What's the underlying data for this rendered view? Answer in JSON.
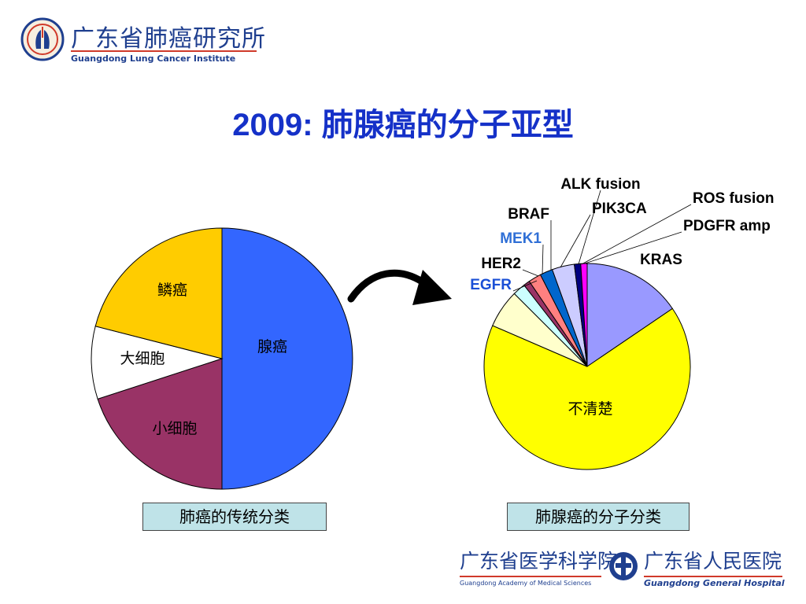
{
  "header": {
    "logo_cn": "广东省肺癌研究所",
    "logo_en": "Guangdong Lung Cancer Institute"
  },
  "title": "2009: 肺腺癌的分子亚型",
  "colors": {
    "title": "#1531c8",
    "caption_bg": "#bfe3e8",
    "logo_blue": "#1f3f8f",
    "logo_red": "#d03a2a",
    "egfr_label": "#1a4fd6",
    "mek1_label": "#2f6fd6"
  },
  "chart_data": [
    {
      "type": "pie",
      "title": "",
      "caption": "肺癌的传统分类",
      "categories": [
        "腺癌",
        "小细胞",
        "大细胞",
        "鳞癌"
      ],
      "values": [
        50,
        20,
        9,
        21
      ],
      "colors": [
        "#3366ff",
        "#993366",
        "#ffffff",
        "#ffcc00"
      ],
      "start_angle_deg": 0,
      "direction": "clockwise",
      "labels_inside": true,
      "legend": "none"
    },
    {
      "type": "pie",
      "title": "",
      "caption": "肺腺癌的分子分类",
      "categories": [
        "KRAS",
        "不清楚",
        "EGFR",
        "HER2",
        "MEK1",
        "BRAF",
        "PIK3CA",
        "ALK fusion",
        "ROS fusion",
        "PDGFR amp"
      ],
      "values": [
        15.5,
        66,
        6,
        2,
        1,
        2,
        2,
        3.5,
        1,
        1
      ],
      "colors": [
        "#9999ff",
        "#ffff00",
        "#ffffcc",
        "#ccffff",
        "#993366",
        "#ff8080",
        "#0066cc",
        "#ccccff",
        "#000080",
        "#ff00ff"
      ],
      "label_colors": [
        "#000000",
        "#000000",
        "#1a4fd6",
        "#000000",
        "#2f6fd6",
        "#000000",
        "#000000",
        "#000000",
        "#000000",
        "#000000"
      ],
      "start_angle_deg": 0,
      "direction": "clockwise",
      "labels_inside": false,
      "legend": "none"
    }
  ],
  "footer": {
    "academy_cn": "广东省医学科学院",
    "academy_en": "Guangdong Academy of Medical Sciences",
    "hospital_cn": "广东省人民医院",
    "hospital_en": "Guangdong General Hospital"
  }
}
